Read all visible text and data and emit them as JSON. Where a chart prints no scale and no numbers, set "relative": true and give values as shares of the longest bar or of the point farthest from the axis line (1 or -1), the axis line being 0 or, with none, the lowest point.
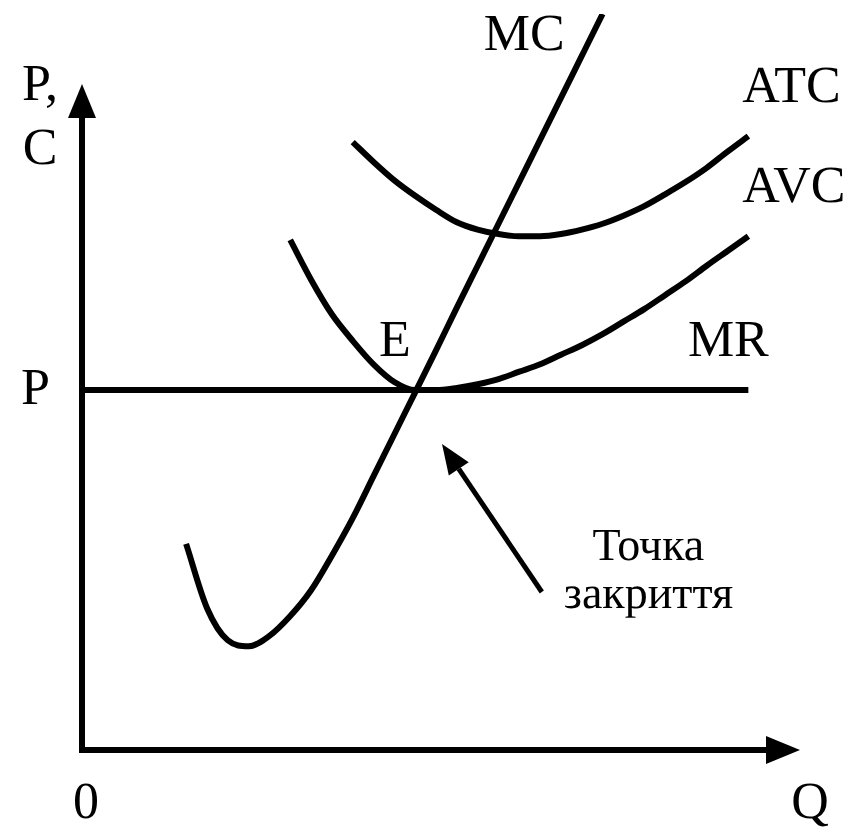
{
  "chart_data": {
    "type": "line",
    "relative": true,
    "xlabel": "Q",
    "ylabel": "P, C",
    "categories": [
      null,
      null,
      null,
      null,
      null,
      null,
      null,
      null,
      null,
      null,
      null,
      null,
      null,
      null,
      null,
      null,
      null,
      null,
      null,
      null,
      null,
      null,
      null,
      null,
      null,
      null,
      null,
      null,
      null,
      null,
      null,
      null,
      null,
      null,
      null
    ],
    "series": [
      {
        "name": "MC",
        "color": "#000000",
        "values": [
          null,
          null,
          null,
          null,
          null,
          0.28,
          0.193,
          0.149,
          0.141,
          0.155,
          0.182,
          0.217,
          0.264,
          0.315,
          0.372,
          0.429,
          0.486,
          0.543,
          0.601,
          0.658,
          0.715,
          0.772,
          0.829,
          0.886,
          0.943,
          1.0,
          null,
          null,
          null,
          null,
          null,
          null,
          null,
          null,
          null
        ]
      },
      {
        "name": "ATC",
        "color": "#000000",
        "values": [
          null,
          null,
          null,
          null,
          null,
          null,
          null,
          null,
          null,
          null,
          null,
          null,
          null,
          0.826,
          0.799,
          0.774,
          0.753,
          0.734,
          0.717,
          0.707,
          0.701,
          0.698,
          0.698,
          0.701,
          0.707,
          0.715,
          0.726,
          0.739,
          0.755,
          0.772,
          0.791,
          0.813,
          0.834,
          null,
          null
        ]
      },
      {
        "name": "AVC",
        "color": "#000000",
        "values": [
          null,
          null,
          null,
          null,
          null,
          null,
          null,
          null,
          null,
          null,
          0.693,
          0.639,
          0.592,
          0.556,
          0.524,
          0.5,
          0.489,
          0.489,
          0.492,
          0.497,
          0.504,
          0.514,
          0.524,
          0.537,
          0.55,
          0.565,
          0.582,
          0.599,
          0.618,
          0.637,
          0.658,
          0.678,
          0.698,
          null,
          null
        ]
      },
      {
        "name": "MR",
        "color": "#000000",
        "values": [
          0.489,
          0.489,
          0.489,
          0.489,
          0.489,
          0.489,
          0.489,
          0.489,
          0.489,
          0.489,
          0.489,
          0.489,
          0.489,
          0.489,
          0.489,
          0.489,
          0.489,
          0.489,
          0.489,
          0.489,
          0.489,
          0.489,
          0.489,
          0.489,
          0.489,
          0.489,
          0.489,
          0.489,
          0.489,
          0.489,
          0.489,
          0.489,
          0.489,
          null,
          null
        ]
      }
    ],
    "annotations": [
      "P",
      {
        "text": "E",
        "y": 0.489
      },
      {
        "text": "Точка закриття",
        "y": 0.489
      },
      "0"
    ]
  }
}
